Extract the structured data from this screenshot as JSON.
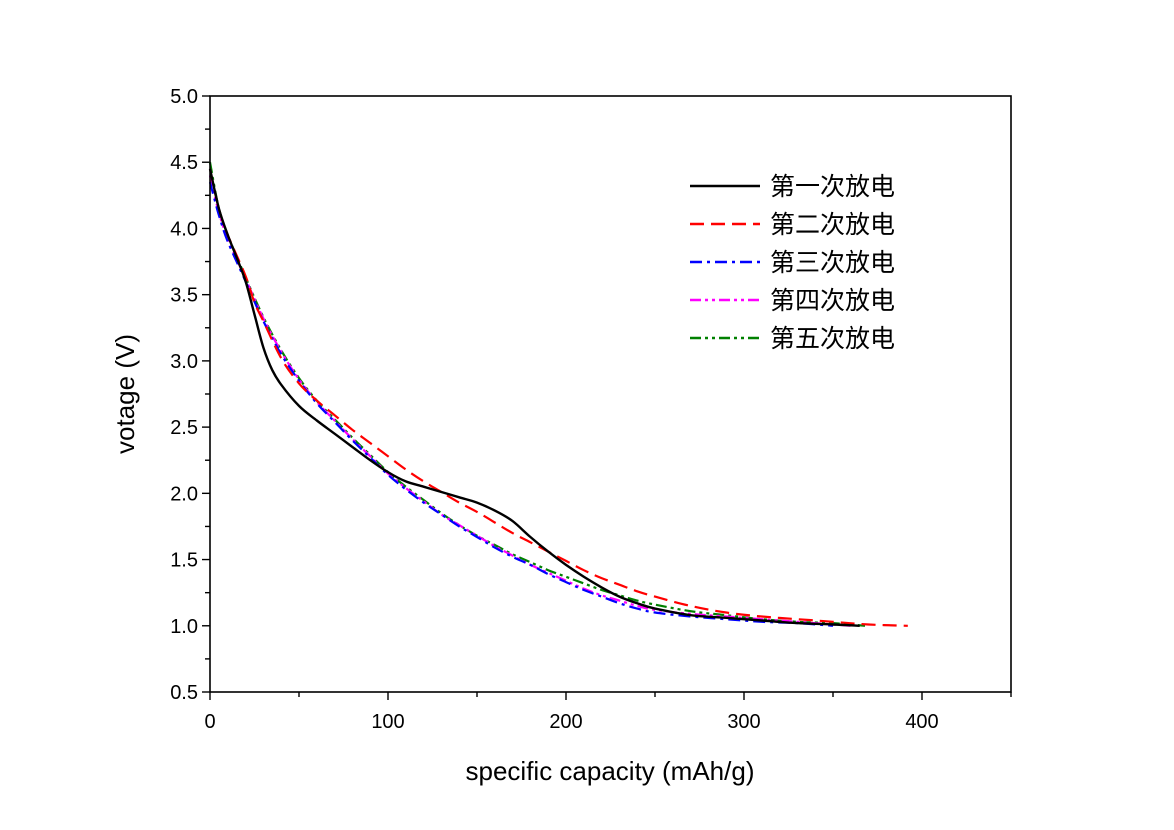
{
  "chart_data": {
    "type": "line",
    "title": "",
    "xlabel": "specific capacity (mAh/g)",
    "ylabel": "votage (V)",
    "xlim": [
      0,
      450
    ],
    "ylim": [
      0.5,
      5.0
    ],
    "xticks": [
      0,
      100,
      200,
      300,
      400
    ],
    "yticks": [
      0.5,
      1.0,
      1.5,
      2.0,
      2.5,
      3.0,
      3.5,
      4.0,
      4.5,
      5.0
    ],
    "xtick_labels": [
      "0",
      "100",
      "200",
      "300",
      "400"
    ],
    "ytick_labels": [
      "0.5",
      "1.0",
      "1.5",
      "2.0",
      "2.5",
      "3.0",
      "3.5",
      "4.0",
      "4.5",
      "5.0"
    ],
    "legend_position": "top-right",
    "series": [
      {
        "name": "第一次放电",
        "color": "#000000",
        "dash": "solid",
        "points": [
          [
            0,
            4.45
          ],
          [
            5,
            4.15
          ],
          [
            10,
            3.95
          ],
          [
            15,
            3.78
          ],
          [
            20,
            3.6
          ],
          [
            25,
            3.35
          ],
          [
            30,
            3.1
          ],
          [
            35,
            2.93
          ],
          [
            40,
            2.82
          ],
          [
            50,
            2.66
          ],
          [
            60,
            2.55
          ],
          [
            70,
            2.45
          ],
          [
            80,
            2.35
          ],
          [
            90,
            2.25
          ],
          [
            100,
            2.16
          ],
          [
            110,
            2.09
          ],
          [
            120,
            2.05
          ],
          [
            130,
            2.01
          ],
          [
            140,
            1.97
          ],
          [
            150,
            1.93
          ],
          [
            160,
            1.87
          ],
          [
            170,
            1.79
          ],
          [
            180,
            1.67
          ],
          [
            190,
            1.56
          ],
          [
            200,
            1.46
          ],
          [
            210,
            1.37
          ],
          [
            220,
            1.29
          ],
          [
            230,
            1.22
          ],
          [
            240,
            1.17
          ],
          [
            250,
            1.13
          ],
          [
            270,
            1.08
          ],
          [
            290,
            1.06
          ],
          [
            310,
            1.04
          ],
          [
            330,
            1.02
          ],
          [
            350,
            1.01
          ],
          [
            365,
            1.0
          ]
        ]
      },
      {
        "name": "第二次放电",
        "color": "#ff0000",
        "dash": "dashed",
        "points": [
          [
            0,
            4.45
          ],
          [
            5,
            4.15
          ],
          [
            10,
            3.95
          ],
          [
            20,
            3.64
          ],
          [
            25,
            3.44
          ],
          [
            30,
            3.3
          ],
          [
            40,
            3.02
          ],
          [
            50,
            2.83
          ],
          [
            60,
            2.7
          ],
          [
            70,
            2.59
          ],
          [
            80,
            2.48
          ],
          [
            90,
            2.38
          ],
          [
            100,
            2.28
          ],
          [
            110,
            2.18
          ],
          [
            120,
            2.09
          ],
          [
            130,
            2.01
          ],
          [
            140,
            1.93
          ],
          [
            150,
            1.86
          ],
          [
            160,
            1.78
          ],
          [
            170,
            1.7
          ],
          [
            180,
            1.63
          ],
          [
            190,
            1.56
          ],
          [
            200,
            1.49
          ],
          [
            210,
            1.42
          ],
          [
            220,
            1.36
          ],
          [
            230,
            1.31
          ],
          [
            240,
            1.26
          ],
          [
            250,
            1.22
          ],
          [
            270,
            1.15
          ],
          [
            290,
            1.1
          ],
          [
            310,
            1.07
          ],
          [
            330,
            1.05
          ],
          [
            350,
            1.03
          ],
          [
            370,
            1.01
          ],
          [
            392,
            1.0
          ]
        ]
      },
      {
        "name": "第三次放电",
        "color": "#0000ff",
        "dash": "dash-dot",
        "points": [
          [
            0,
            4.35
          ],
          [
            5,
            4.1
          ],
          [
            10,
            3.9
          ],
          [
            20,
            3.6
          ],
          [
            30,
            3.3
          ],
          [
            40,
            3.05
          ],
          [
            50,
            2.85
          ],
          [
            60,
            2.68
          ],
          [
            70,
            2.54
          ],
          [
            80,
            2.4
          ],
          [
            90,
            2.27
          ],
          [
            100,
            2.14
          ],
          [
            110,
            2.03
          ],
          [
            120,
            1.93
          ],
          [
            130,
            1.84
          ],
          [
            140,
            1.75
          ],
          [
            150,
            1.67
          ],
          [
            160,
            1.59
          ],
          [
            170,
            1.52
          ],
          [
            180,
            1.46
          ],
          [
            190,
            1.39
          ],
          [
            200,
            1.33
          ],
          [
            210,
            1.27
          ],
          [
            220,
            1.22
          ],
          [
            230,
            1.17
          ],
          [
            240,
            1.13
          ],
          [
            250,
            1.1
          ],
          [
            270,
            1.07
          ],
          [
            290,
            1.05
          ],
          [
            310,
            1.03
          ],
          [
            330,
            1.02
          ],
          [
            350,
            1.0
          ]
        ]
      },
      {
        "name": "第四次放电",
        "color": "#ff00ff",
        "dash": "dash-dot-dot",
        "points": [
          [
            0,
            4.4
          ],
          [
            5,
            4.12
          ],
          [
            10,
            3.92
          ],
          [
            20,
            3.62
          ],
          [
            30,
            3.32
          ],
          [
            40,
            3.07
          ],
          [
            50,
            2.86
          ],
          [
            60,
            2.69
          ],
          [
            70,
            2.55
          ],
          [
            80,
            2.41
          ],
          [
            90,
            2.28
          ],
          [
            100,
            2.15
          ],
          [
            110,
            2.04
          ],
          [
            120,
            1.94
          ],
          [
            130,
            1.84
          ],
          [
            140,
            1.76
          ],
          [
            150,
            1.68
          ],
          [
            160,
            1.6
          ],
          [
            170,
            1.53
          ],
          [
            180,
            1.46
          ],
          [
            190,
            1.4
          ],
          [
            200,
            1.34
          ],
          [
            210,
            1.28
          ],
          [
            220,
            1.23
          ],
          [
            230,
            1.19
          ],
          [
            240,
            1.15
          ],
          [
            250,
            1.12
          ],
          [
            270,
            1.09
          ],
          [
            290,
            1.07
          ],
          [
            310,
            1.05
          ],
          [
            330,
            1.03
          ],
          [
            350,
            1.01
          ],
          [
            360,
            1.0
          ]
        ]
      },
      {
        "name": "第五次放电",
        "color": "#008000",
        "dash": "dash-dot-dot",
        "points": [
          [
            0,
            4.5
          ],
          [
            5,
            4.15
          ],
          [
            10,
            3.95
          ],
          [
            20,
            3.63
          ],
          [
            30,
            3.33
          ],
          [
            40,
            3.08
          ],
          [
            50,
            2.87
          ],
          [
            60,
            2.7
          ],
          [
            70,
            2.56
          ],
          [
            80,
            2.42
          ],
          [
            90,
            2.29
          ],
          [
            100,
            2.16
          ],
          [
            110,
            2.05
          ],
          [
            120,
            1.95
          ],
          [
            130,
            1.85
          ],
          [
            140,
            1.76
          ],
          [
            150,
            1.68
          ],
          [
            160,
            1.61
          ],
          [
            170,
            1.54
          ],
          [
            180,
            1.48
          ],
          [
            190,
            1.42
          ],
          [
            200,
            1.37
          ],
          [
            210,
            1.32
          ],
          [
            220,
            1.27
          ],
          [
            230,
            1.23
          ],
          [
            240,
            1.19
          ],
          [
            250,
            1.16
          ],
          [
            270,
            1.11
          ],
          [
            290,
            1.08
          ],
          [
            310,
            1.05
          ],
          [
            330,
            1.03
          ],
          [
            350,
            1.02
          ],
          [
            368,
            1.0
          ]
        ]
      }
    ]
  }
}
